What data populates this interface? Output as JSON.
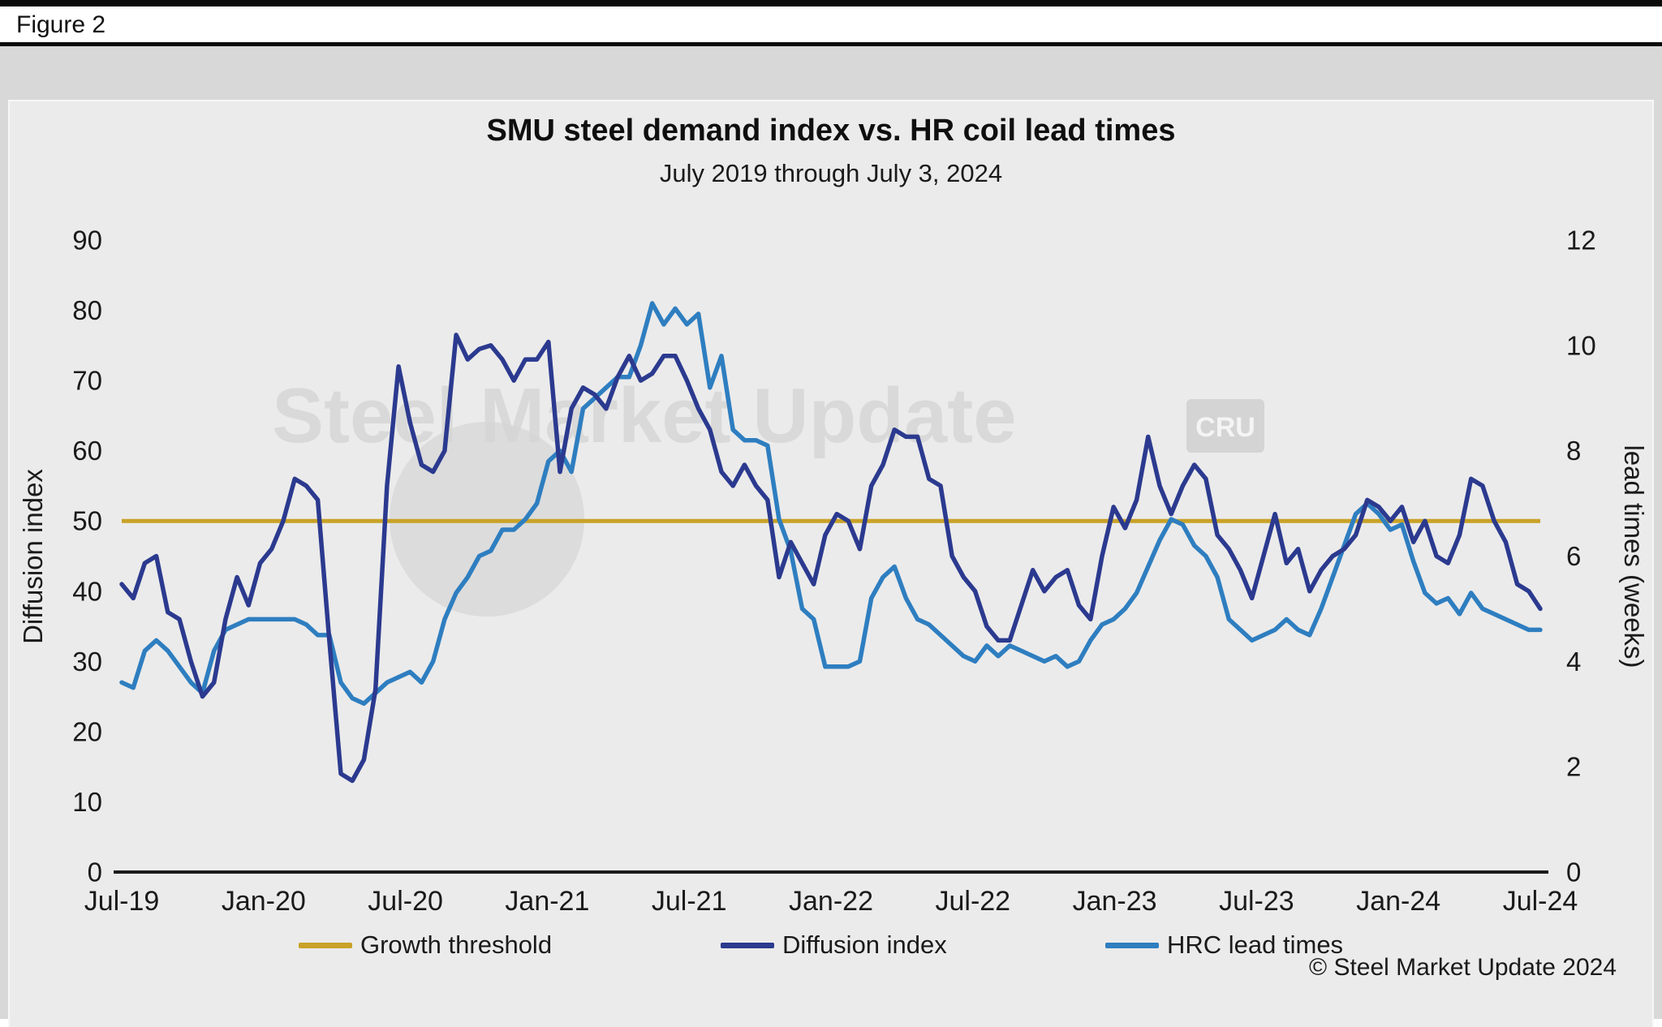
{
  "figure_label": "Figure 2",
  "title": "SMU steel demand index vs. HR coil lead times",
  "subtitle": "July 2019 through July 3, 2024",
  "copyright": "© Steel Market Update 2024",
  "watermark": {
    "text": "Steel Market Update",
    "logo": "CRU"
  },
  "colors": {
    "growth_threshold": "#C9A227",
    "diffusion_index": "#2B3A8F",
    "hrc_lead_times": "#2E7EC0",
    "axis": "#1a1a1a",
    "panel_bg": "#EBEBEB"
  },
  "legend": {
    "items": [
      {
        "label": "Growth threshold",
        "color": "#C9A227"
      },
      {
        "label": "Diffusion index",
        "color": "#2B3A8F"
      },
      {
        "label": "HRC lead times",
        "color": "#2E7EC0"
      }
    ]
  },
  "chart_data": {
    "type": "line",
    "title": "SMU steel demand index vs. HR coil lead times",
    "subtitle": "July 2019 through July 3, 2024",
    "x_ticks": [
      "Jul-19",
      "Jan-20",
      "Jul-20",
      "Jan-21",
      "Jul-21",
      "Jan-22",
      "Jul-22",
      "Jan-23",
      "Jul-23",
      "Jan-24",
      "Jul-24"
    ],
    "y_left": {
      "label": "Diffusion index",
      "min": 0,
      "max": 90,
      "ticks": [
        90,
        80,
        70,
        60,
        50,
        40,
        30,
        20,
        10,
        0
      ]
    },
    "y_right": {
      "label": "lead times (weeks)",
      "min": 0,
      "max": 12,
      "ticks": [
        12,
        10,
        8,
        6,
        4,
        2,
        0
      ]
    },
    "grid": false,
    "legend_position": "bottom",
    "growth_threshold_value": 50,
    "series": [
      {
        "name": "Diffusion index",
        "axis": "left",
        "values": [
          41,
          39,
          44,
          45,
          37,
          36,
          30,
          25,
          27,
          36,
          42,
          38,
          44,
          46,
          50,
          56,
          55,
          53,
          33,
          14,
          13,
          16,
          26,
          55,
          72,
          64,
          58,
          57,
          60,
          76.5,
          73,
          74.5,
          75,
          73,
          70,
          73,
          73,
          75.5,
          57,
          66,
          69,
          68,
          66,
          70.5,
          73.5,
          70,
          71,
          73.5,
          73.5,
          70,
          66,
          63,
          57,
          55,
          58,
          55,
          53,
          42,
          47,
          44,
          41,
          48,
          51,
          50,
          46,
          55,
          58,
          63,
          62,
          62,
          56,
          55,
          45,
          42,
          40,
          35,
          33,
          33,
          38,
          43,
          40,
          42,
          43,
          38,
          36,
          45,
          52,
          49,
          53,
          62,
          55,
          51,
          55,
          58,
          56,
          48,
          46,
          43,
          39,
          45,
          51,
          44,
          46,
          40,
          43,
          45,
          46,
          48,
          53,
          52,
          50,
          52,
          47,
          50,
          45,
          44,
          48,
          56,
          55,
          50,
          47,
          41,
          40,
          37.5
        ]
      },
      {
        "name": "HRC lead times",
        "axis": "right",
        "values": [
          3.6,
          3.5,
          4.2,
          4.4,
          4.2,
          3.9,
          3.6,
          3.4,
          4.2,
          4.6,
          4.7,
          4.8,
          4.8,
          4.8,
          4.8,
          4.8,
          4.7,
          4.5,
          4.5,
          3.6,
          3.3,
          3.2,
          3.4,
          3.6,
          3.7,
          3.8,
          3.6,
          4.0,
          4.8,
          5.3,
          5.6,
          6.0,
          6.1,
          6.5,
          6.5,
          6.7,
          7.0,
          7.8,
          8.0,
          7.6,
          8.8,
          9.0,
          9.2,
          9.4,
          9.4,
          10.0,
          10.8,
          10.4,
          10.7,
          10.4,
          10.6,
          9.2,
          9.8,
          8.4,
          8.2,
          8.2,
          8.1,
          6.7,
          6.1,
          5.0,
          4.8,
          3.9,
          3.9,
          3.9,
          4.0,
          5.2,
          5.6,
          5.8,
          5.2,
          4.8,
          4.7,
          4.5,
          4.3,
          4.1,
          4.0,
          4.3,
          4.1,
          4.3,
          4.2,
          4.1,
          4.0,
          4.1,
          3.9,
          4.0,
          4.4,
          4.7,
          4.8,
          5.0,
          5.3,
          5.8,
          6.3,
          6.7,
          6.6,
          6.2,
          6.0,
          5.6,
          4.8,
          4.6,
          4.4,
          4.5,
          4.6,
          4.8,
          4.6,
          4.5,
          5.0,
          5.6,
          6.2,
          6.8,
          7.0,
          6.8,
          6.5,
          6.6,
          5.9,
          5.3,
          5.1,
          5.2,
          4.9,
          5.3,
          5.0,
          4.9,
          4.8,
          4.7,
          4.6,
          4.6
        ]
      }
    ]
  }
}
